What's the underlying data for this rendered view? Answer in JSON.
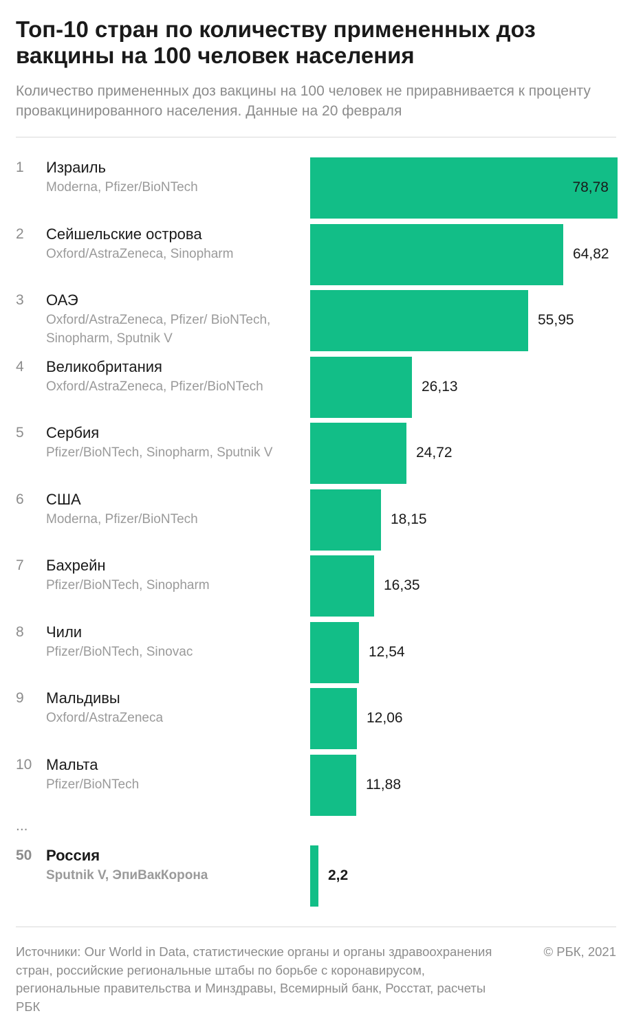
{
  "header": {
    "title": "Топ-10 стран по количеству примененных доз вакцины на 100 человек населения",
    "subtitle": "Количество примененных доз вакцины на 100 человек не приравнивается к проценту провакцинированного населения. Данные на 20 февраля"
  },
  "chart_data": {
    "type": "bar",
    "orientation": "horizontal",
    "title": "Топ-10 стран по количеству примененных доз вакцины на 100 человек населения",
    "xlim": [
      0,
      78.78
    ],
    "grid": false,
    "bar_color": "#12be87",
    "ellipsis": "...",
    "rows": [
      {
        "rank": "1",
        "country": "Израиль",
        "vaccines": "Moderna, Pfizer/BioNTech",
        "value": 78.78,
        "label": "78,78"
      },
      {
        "rank": "2",
        "country": "Сейшельские острова",
        "vaccines": "Oxford/AstraZeneca, Sinopharm",
        "value": 64.82,
        "label": "64,82"
      },
      {
        "rank": "3",
        "country": "ОАЭ",
        "vaccines": "Oxford/AstraZeneca, Pfizer/ BioNTech, Sinopharm, Sputnik V",
        "value": 55.95,
        "label": "55,95"
      },
      {
        "rank": "4",
        "country": "Великобритания",
        "vaccines": "Oxford/AstraZeneca, Pfizer/BioNTech",
        "value": 26.13,
        "label": "26,13"
      },
      {
        "rank": "5",
        "country": "Сербия",
        "vaccines": "Pfizer/BioNTech, Sinopharm, Sputnik V",
        "value": 24.72,
        "label": "24,72"
      },
      {
        "rank": "6",
        "country": "США",
        "vaccines": "Moderna, Pfizer/BioNTech",
        "value": 18.15,
        "label": "18,15"
      },
      {
        "rank": "7",
        "country": "Бахрейн",
        "vaccines": "Pfizer/BioNTech, Sinopharm",
        "value": 16.35,
        "label": "16,35"
      },
      {
        "rank": "8",
        "country": "Чили",
        "vaccines": "Pfizer/BioNTech, Sinovac",
        "value": 12.54,
        "label": "12,54"
      },
      {
        "rank": "9",
        "country": "Мальдивы",
        "vaccines": "Oxford/AstraZeneca",
        "value": 12.06,
        "label": "12,06"
      },
      {
        "rank": "10",
        "country": "Мальта",
        "vaccines": "Pfizer/BioNTech",
        "value": 11.88,
        "label": "11,88"
      },
      {
        "rank": "50",
        "country": "Россия",
        "vaccines": "Sputnik V, ЭпиВакКорона",
        "value": 2.2,
        "label": "2,2",
        "highlight": true
      }
    ]
  },
  "footer": {
    "sources": "Источники: Our World in Data, статистические органы и органы здравоохранения стран, российские региональные штабы по борьбе с коронавирусом, региональные правительства и Минздравы, Всемирный банк, Росстат, расчеты РБК",
    "copyright": "© РБК, 2021"
  }
}
